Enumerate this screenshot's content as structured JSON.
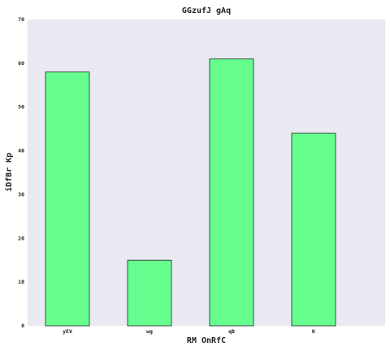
{
  "chart_data": {
    "type": "bar",
    "title": "GGzufJ gAq",
    "xlabel": "RM OnRfC",
    "ylabel": "iDfBr Kp",
    "categories": [
      "yEV",
      "wg",
      "qB",
      "K"
    ],
    "values": [
      58,
      15,
      61,
      44
    ],
    "ylim": [
      0,
      70
    ],
    "yticks": [
      0,
      10,
      20,
      30,
      40,
      50,
      60,
      70
    ],
    "grid": false,
    "colors": {
      "bar": "#66ff8f",
      "bar_edge": "#222222",
      "plot_bg": "#e9e9f2"
    }
  }
}
